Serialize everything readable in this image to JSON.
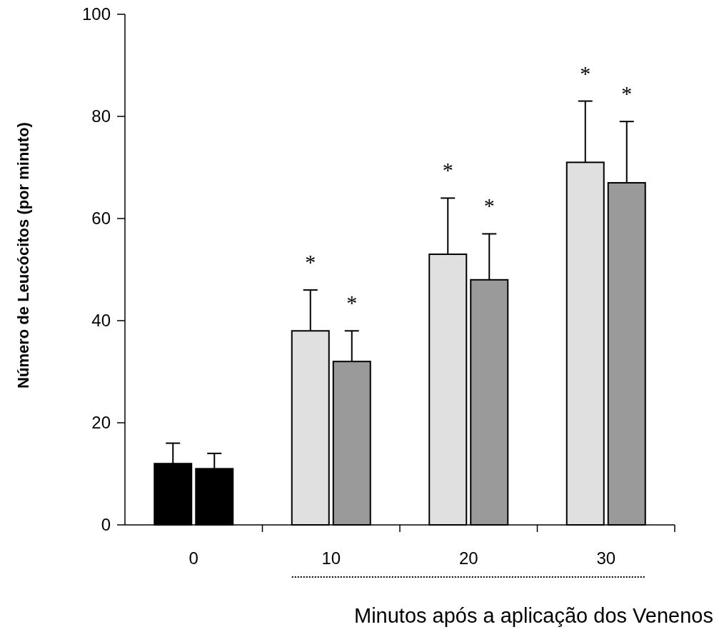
{
  "chart_data": {
    "type": "bar",
    "xlabel": "Minutos após a aplicação dos Venenos",
    "ylabel": "Número de Leucócitos (por minuto)",
    "categories": [
      "0",
      "10",
      "20",
      "30"
    ],
    "series": [
      {
        "colors": [
          "#000000",
          "#e0e0e0",
          "#e0e0e0",
          "#e0e0e0"
        ],
        "values": [
          12,
          38,
          53,
          71
        ],
        "errors": [
          4,
          8,
          11,
          12
        ]
      },
      {
        "colors": [
          "#000000",
          "#9a9a9a",
          "#9a9a9a",
          "#9a9a9a"
        ],
        "values": [
          11,
          32,
          48,
          67
        ],
        "errors": [
          3,
          6,
          9,
          12
        ]
      }
    ],
    "ylim": [
      0,
      100
    ],
    "yticks": [
      0,
      20,
      40,
      60,
      80,
      100
    ],
    "grid": false,
    "annotations": [
      "*",
      "*",
      "*",
      "*",
      "*",
      "*"
    ]
  }
}
